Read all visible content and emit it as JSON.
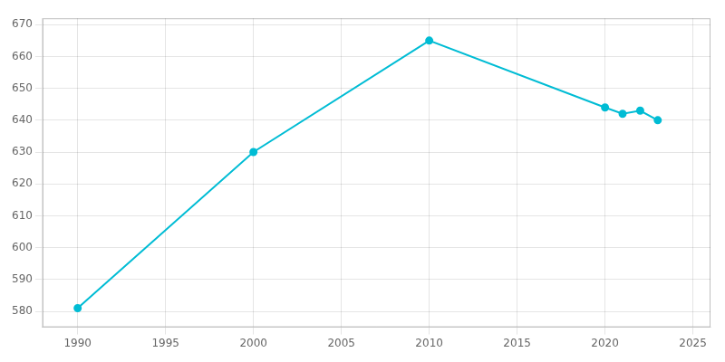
{
  "chart_data": {
    "type": "line",
    "x": [
      1990,
      2000,
      2010,
      2020,
      2021,
      2022,
      2023
    ],
    "values": [
      581,
      630,
      665,
      644,
      642,
      643,
      640
    ],
    "color": "#00bcd4",
    "marker": "circle",
    "xlim": [
      1988,
      2026
    ],
    "ylim": [
      575,
      672
    ],
    "xticks": [
      1990,
      1995,
      2000,
      2005,
      2010,
      2015,
      2020,
      2025
    ],
    "yticks": [
      580,
      590,
      600,
      610,
      620,
      630,
      640,
      650,
      660,
      670
    ],
    "grid": true
  }
}
